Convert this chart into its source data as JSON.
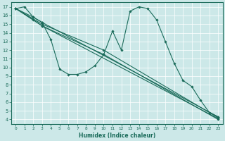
{
  "xlabel": "Humidex (Indice chaleur)",
  "bg_color": "#cce8e8",
  "grid_color": "#ffffff",
  "line_color": "#1a6b5a",
  "xlim": [
    -0.5,
    23.5
  ],
  "ylim": [
    3.5,
    17.5
  ],
  "xticks": [
    0,
    1,
    2,
    3,
    4,
    5,
    6,
    7,
    8,
    9,
    10,
    11,
    12,
    13,
    14,
    15,
    16,
    17,
    18,
    19,
    20,
    21,
    22,
    23
  ],
  "yticks": [
    4,
    5,
    6,
    7,
    8,
    9,
    10,
    11,
    12,
    13,
    14,
    15,
    16,
    17
  ],
  "curves": [
    {
      "x": [
        0,
        1,
        2,
        3,
        4,
        5,
        6,
        7,
        8,
        9,
        10,
        11,
        12,
        13,
        14,
        15,
        16,
        17,
        18,
        19,
        20,
        21,
        22,
        23
      ],
      "y": [
        16.8,
        17.0,
        15.8,
        15.2,
        13.2,
        9.8,
        9.2,
        9.2,
        9.5,
        10.2,
        11.5,
        14.2,
        12.0,
        16.5,
        17.0,
        16.8,
        15.5,
        13.0,
        10.5,
        8.5,
        7.8,
        6.2,
        4.8,
        4.3
      ]
    },
    {
      "x": [
        0,
        2,
        3,
        23
      ],
      "y": [
        16.8,
        15.8,
        15.2,
        4.3
      ]
    },
    {
      "x": [
        0,
        2,
        3,
        23
      ],
      "y": [
        16.8,
        15.5,
        14.8,
        4.1
      ]
    },
    {
      "x": [
        0,
        3,
        10,
        23
      ],
      "y": [
        16.8,
        15.0,
        12.0,
        4.2
      ]
    },
    {
      "x": [
        0,
        3,
        10,
        23
      ],
      "y": [
        16.8,
        14.8,
        11.5,
        4.0
      ]
    }
  ]
}
